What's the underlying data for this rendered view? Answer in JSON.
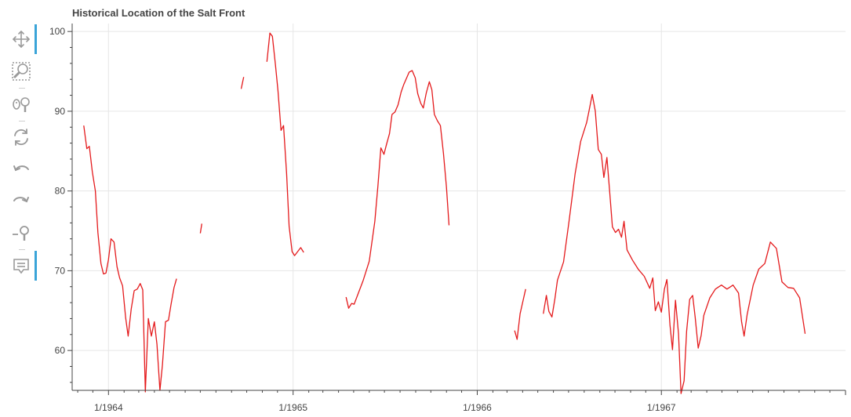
{
  "chart_data": {
    "type": "line",
    "title": "Historical Location of the Salt Front",
    "xlabel": "",
    "ylabel": "",
    "x_range": [
      "1963-10-21",
      "1968-01-01"
    ],
    "ylim": [
      55,
      101
    ],
    "x_ticks": [
      {
        "label": "1/1964",
        "date": "1964-01-01"
      },
      {
        "label": "1/1965",
        "date": "1965-01-01"
      },
      {
        "label": "1/1966",
        "date": "1966-01-01"
      },
      {
        "label": "1/1967",
        "date": "1967-01-01"
      }
    ],
    "y_ticks": [
      60,
      70,
      80,
      90,
      100
    ],
    "grid": true,
    "legend": "none",
    "series": [
      {
        "color": "#e41a1c",
        "segments": [
          [
            [
              "1963-11-13",
              88.2
            ],
            [
              "1963-11-19",
              85.3
            ],
            [
              "1963-11-24",
              85.6
            ],
            [
              "1963-11-30",
              82.4
            ],
            [
              "1963-12-06",
              80.0
            ],
            [
              "1963-12-11",
              74.8
            ],
            [
              "1963-12-17",
              70.9
            ],
            [
              "1963-12-22",
              69.6
            ],
            [
              "1963-12-27",
              69.7
            ],
            [
              "1964-01-01",
              71.4
            ],
            [
              "1964-01-06",
              74.0
            ],
            [
              "1964-01-12",
              73.6
            ],
            [
              "1964-01-18",
              70.5
            ],
            [
              "1964-01-23",
              69.1
            ],
            [
              "1964-01-29",
              68.1
            ],
            [
              "1964-02-04",
              64.1
            ],
            [
              "1964-02-09",
              61.8
            ],
            [
              "1964-02-15",
              65.2
            ],
            [
              "1964-02-21",
              67.5
            ],
            [
              "1964-02-27",
              67.7
            ],
            [
              "1964-03-04",
              68.4
            ],
            [
              "1964-03-09",
              67.6
            ],
            [
              "1964-03-14",
              54.8
            ],
            [
              "1964-03-20",
              64.0
            ],
            [
              "1964-03-26",
              61.8
            ],
            [
              "1964-04-01",
              63.6
            ],
            [
              "1964-04-06",
              60.8
            ],
            [
              "1964-04-12",
              55.0
            ],
            [
              "1964-04-17",
              58.2
            ],
            [
              "1964-04-23",
              63.6
            ],
            [
              "1964-04-29",
              63.8
            ],
            [
              "1964-05-04",
              65.8
            ],
            [
              "1964-05-10",
              67.9
            ],
            [
              "1964-05-15",
              69.0
            ]
          ],
          [
            [
              "1964-07-01",
              74.7
            ],
            [
              "1964-07-04",
              75.9
            ]
          ],
          [
            [
              "1964-09-20",
              92.8
            ],
            [
              "1964-09-25",
              94.3
            ]
          ],
          [
            [
              "1964-11-10",
              96.2
            ],
            [
              "1964-11-16",
              99.8
            ],
            [
              "1964-11-21",
              99.4
            ],
            [
              "1964-11-27",
              95.8
            ],
            [
              "1964-12-02",
              92.6
            ],
            [
              "1964-12-08",
              87.6
            ],
            [
              "1964-12-13",
              88.2
            ],
            [
              "1964-12-19",
              82.2
            ],
            [
              "1964-12-24",
              75.6
            ],
            [
              "1964-12-30",
              72.4
            ],
            [
              "1965-01-04",
              71.9
            ],
            [
              "1965-01-10",
              72.4
            ],
            [
              "1965-01-16",
              72.9
            ],
            [
              "1965-01-22",
              72.3
            ]
          ],
          [
            [
              "1965-04-16",
              66.7
            ],
            [
              "1965-04-21",
              65.3
            ],
            [
              "1965-04-27",
              65.9
            ],
            [
              "1965-05-02",
              65.8
            ],
            [
              "1965-05-08",
              66.8
            ],
            [
              "1965-05-20",
              68.8
            ],
            [
              "1965-06-01",
              71.2
            ],
            [
              "1965-06-12",
              76.2
            ],
            [
              "1965-06-18",
              80.6
            ],
            [
              "1965-06-24",
              85.4
            ],
            [
              "1965-06-30",
              84.6
            ],
            [
              "1965-07-05",
              85.8
            ],
            [
              "1965-07-11",
              87.2
            ],
            [
              "1965-07-16",
              89.6
            ],
            [
              "1965-07-22",
              89.9
            ],
            [
              "1965-07-28",
              90.8
            ],
            [
              "1965-08-03",
              92.4
            ],
            [
              "1965-08-08",
              93.3
            ],
            [
              "1965-08-19",
              94.9
            ],
            [
              "1965-08-25",
              95.1
            ],
            [
              "1965-08-31",
              94.2
            ],
            [
              "1965-09-05",
              92.2
            ],
            [
              "1965-09-11",
              91.0
            ],
            [
              "1965-09-16",
              90.4
            ],
            [
              "1965-09-22",
              92.3
            ],
            [
              "1965-09-28",
              93.7
            ],
            [
              "1965-10-03",
              92.7
            ],
            [
              "1965-10-08",
              89.6
            ],
            [
              "1965-10-14",
              88.8
            ],
            [
              "1965-10-20",
              88.2
            ],
            [
              "1965-10-26",
              84.7
            ],
            [
              "1965-11-01",
              80.5
            ],
            [
              "1965-11-06",
              75.7
            ]
          ],
          [
            [
              "1966-03-16",
              62.5
            ],
            [
              "1966-03-21",
              61.4
            ],
            [
              "1966-03-27",
              64.6
            ],
            [
              "1966-04-02",
              66.3
            ],
            [
              "1966-04-07",
              67.7
            ]
          ],
          [
            [
              "1966-05-12",
              64.6
            ],
            [
              "1966-05-18",
              66.9
            ],
            [
              "1966-05-23",
              64.9
            ],
            [
              "1966-05-29",
              64.2
            ],
            [
              "1966-06-04",
              66.5
            ],
            [
              "1966-06-09",
              68.8
            ],
            [
              "1966-06-21",
              71.1
            ],
            [
              "1966-07-02",
              76.2
            ],
            [
              "1966-07-14",
              82.2
            ],
            [
              "1966-07-25",
              86.2
            ],
            [
              "1966-08-06",
              88.6
            ],
            [
              "1966-08-11",
              90.2
            ],
            [
              "1966-08-17",
              92.1
            ],
            [
              "1966-08-23",
              90.0
            ],
            [
              "1966-08-29",
              85.2
            ],
            [
              "1966-09-04",
              84.6
            ],
            [
              "1966-09-09",
              81.7
            ],
            [
              "1966-09-15",
              84.2
            ],
            [
              "1966-09-20",
              80.3
            ],
            [
              "1966-09-26",
              75.5
            ],
            [
              "1966-10-02",
              74.8
            ],
            [
              "1966-10-08",
              75.2
            ],
            [
              "1966-10-14",
              74.2
            ],
            [
              "1966-10-19",
              76.2
            ],
            [
              "1966-10-25",
              72.6
            ],
            [
              "1966-11-05",
              71.3
            ],
            [
              "1966-11-16",
              70.2
            ],
            [
              "1966-11-28",
              69.3
            ],
            [
              "1966-12-09",
              67.8
            ],
            [
              "1966-12-15",
              69.1
            ],
            [
              "1966-12-20",
              65.0
            ],
            [
              "1966-12-26",
              66.1
            ],
            [
              "1967-01-01",
              64.8
            ],
            [
              "1967-01-07",
              67.7
            ],
            [
              "1967-01-12",
              68.9
            ],
            [
              "1967-01-18",
              63.2
            ],
            [
              "1967-01-23",
              60.1
            ],
            [
              "1967-01-29",
              66.3
            ],
            [
              "1967-02-04",
              62.1
            ],
            [
              "1967-02-09",
              54.6
            ],
            [
              "1967-02-15",
              56.2
            ],
            [
              "1967-02-20",
              62.4
            ],
            [
              "1967-02-26",
              66.4
            ],
            [
              "1967-03-04",
              66.9
            ],
            [
              "1967-03-09",
              64.2
            ],
            [
              "1967-03-15",
              60.3
            ],
            [
              "1967-03-21",
              61.9
            ],
            [
              "1967-03-26",
              64.4
            ],
            [
              "1967-04-07",
              66.6
            ],
            [
              "1967-04-18",
              67.7
            ],
            [
              "1967-04-30",
              68.2
            ],
            [
              "1967-05-11",
              67.7
            ],
            [
              "1967-05-23",
              68.2
            ],
            [
              "1967-06-03",
              67.2
            ],
            [
              "1967-06-09",
              63.6
            ],
            [
              "1967-06-14",
              61.8
            ],
            [
              "1967-06-20",
              64.5
            ],
            [
              "1967-07-02",
              68.2
            ],
            [
              "1967-07-13",
              70.2
            ],
            [
              "1967-07-25",
              70.9
            ],
            [
              "1967-08-05",
              73.6
            ],
            [
              "1967-08-17",
              72.8
            ],
            [
              "1967-08-28",
              68.6
            ],
            [
              "1967-09-09",
              67.9
            ],
            [
              "1967-09-20",
              67.8
            ],
            [
              "1967-10-02",
              66.6
            ],
            [
              "1967-10-13",
              62.1
            ]
          ]
        ]
      }
    ]
  },
  "toolbar": {
    "tools": [
      {
        "name": "pan-icon",
        "active": true
      },
      {
        "name": "box-zoom-icon",
        "active": false
      },
      {
        "name": "wheel-zoom-icon",
        "active": false
      },
      {
        "name": "reset-icon",
        "active": false
      },
      {
        "name": "undo-icon",
        "active": false
      },
      {
        "name": "redo-icon",
        "active": false
      },
      {
        "name": "zoom-out-icon",
        "active": false
      },
      {
        "name": "hover-icon",
        "active": true
      }
    ]
  }
}
